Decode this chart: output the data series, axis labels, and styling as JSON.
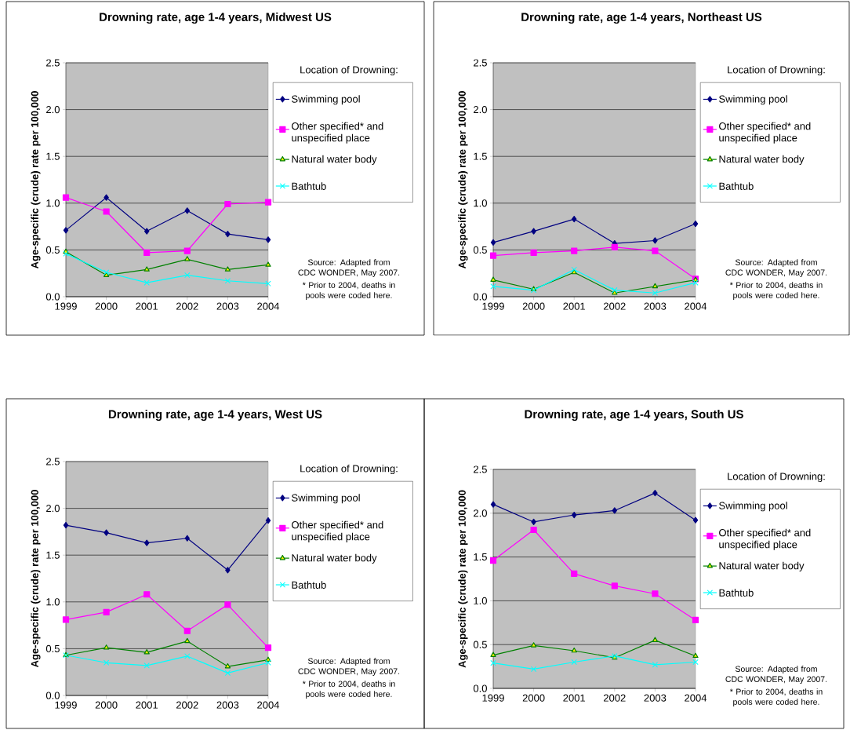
{
  "chart_data": [
    {
      "type": "line",
      "title": "Drowning rate, age 1-4 years, Midwest US",
      "ylabel": "Age-specific (crude) rate per 100,000",
      "legend_title": "Location of Drowning:",
      "categories": [
        "1999",
        "2000",
        "2001",
        "2002",
        "2003",
        "2004"
      ],
      "series": [
        {
          "name": "Swimming pool",
          "color": "#000080",
          "marker": "diamond",
          "values": [
            0.71,
            1.06,
            0.7,
            0.92,
            0.67,
            0.61
          ]
        },
        {
          "name": "Other specified* and unspecified place",
          "color": "#ff00ff",
          "marker": "square",
          "values": [
            1.06,
            0.91,
            0.47,
            0.49,
            0.99,
            1.01
          ]
        },
        {
          "name": "Natural water body",
          "color": "#008000",
          "marker": "triangle",
          "values": [
            0.48,
            0.23,
            0.29,
            0.4,
            0.29,
            0.34
          ]
        },
        {
          "name": "Bathtub",
          "color": "#00ffff",
          "marker": "cross",
          "values": [
            0.46,
            0.26,
            0.15,
            0.23,
            0.17,
            0.14
          ]
        }
      ],
      "ylim": [
        0,
        2.5
      ],
      "yticks": [
        {
          "value": 0,
          "label": "0.0"
        },
        0.5,
        {
          "value": 1,
          "label": "1.0"
        },
        1.5,
        {
          "value": 2,
          "label": "2.0"
        },
        2.5
      ],
      "grid": "y",
      "legend": "right",
      "annotations": [
        "Source: Adapted from CDC WONDER, May 2007.",
        "* Prior to 2004, deaths in pools were coded here."
      ]
    },
    {
      "type": "line",
      "title": "Drowning rate, age 1-4 years, Northeast US",
      "ylabel": "Age-specific (crude) rate per 100,000",
      "legend_title": "Location of Drowning:",
      "categories": [
        "1999",
        "2000",
        "2001",
        "2002",
        "2003",
        "2004"
      ],
      "series": [
        {
          "name": "Swimming pool",
          "color": "#000080",
          "marker": "diamond",
          "values": [
            0.58,
            0.7,
            0.83,
            0.57,
            0.6,
            0.78
          ]
        },
        {
          "name": "Other specified* and unspecified place",
          "color": "#ff00ff",
          "marker": "square",
          "values": [
            0.44,
            0.47,
            0.49,
            0.53,
            0.49,
            0.19
          ]
        },
        {
          "name": "Natural water body",
          "color": "#008000",
          "marker": "triangle",
          "values": [
            0.18,
            0.08,
            0.26,
            0.04,
            0.11,
            0.18
          ]
        },
        {
          "name": "Bathtub",
          "color": "#00ffff",
          "marker": "cross",
          "values": [
            0.11,
            0.07,
            0.29,
            0.07,
            0.04,
            0.15
          ]
        }
      ],
      "ylim": [
        0,
        2.5
      ],
      "yticks": [
        {
          "value": 0,
          "label": "0.0"
        },
        0.5,
        {
          "value": 1,
          "label": "1.0"
        },
        1.5,
        {
          "value": 2,
          "label": "2.0"
        },
        2.5
      ],
      "grid": "y",
      "legend": "right",
      "annotations": [
        "Source: Adapted from CDC WONDER, May 2007.",
        "* Prior to 2004, deaths in pools were coded here."
      ]
    },
    {
      "type": "line",
      "title": "Drowning rate, age 1-4 years, West US",
      "ylabel": "Age-specific (crude) rate per 100,000",
      "legend_title": "Location of Drowning:",
      "categories": [
        "1999",
        "2000",
        "2001",
        "2002",
        "2003",
        "2004"
      ],
      "series": [
        {
          "name": "Swimming pool",
          "color": "#000080",
          "marker": "diamond",
          "values": [
            1.82,
            1.74,
            1.63,
            1.68,
            1.34,
            1.87
          ]
        },
        {
          "name": "Other specified* and unspecified place",
          "color": "#ff00ff",
          "marker": "square",
          "values": [
            0.81,
            0.89,
            1.08,
            0.69,
            0.97,
            0.51
          ]
        },
        {
          "name": "Natural water body",
          "color": "#008000",
          "marker": "triangle",
          "values": [
            0.43,
            0.51,
            0.46,
            0.58,
            0.31,
            0.38
          ]
        },
        {
          "name": "Bathtub",
          "color": "#00ffff",
          "marker": "cross",
          "values": [
            0.43,
            0.35,
            0.32,
            0.42,
            0.24,
            0.35
          ]
        }
      ],
      "ylim": [
        0,
        2.5
      ],
      "yticks": [
        {
          "value": 0,
          "label": "0.0"
        },
        0.5,
        {
          "value": 1,
          "label": "1.0"
        },
        1.5,
        {
          "value": 2,
          "label": "2.0"
        },
        2.5
      ],
      "grid": "y",
      "legend": "right",
      "annotations": [
        "Source: Adapted from CDC WONDER, May 2007.",
        "* Prior to 2004, deaths in pools were coded here."
      ]
    },
    {
      "type": "line",
      "title": "Drowning rate, age 1-4 years, South US",
      "ylabel": "Age-specific (crude) rate per 100,000",
      "legend_title": "Location of Drowning:",
      "categories": [
        "1999",
        "2000",
        "2001",
        "2002",
        "2003",
        "2004"
      ],
      "series": [
        {
          "name": "Swimming pool",
          "color": "#000080",
          "marker": "diamond",
          "values": [
            2.1,
            1.9,
            1.98,
            2.03,
            2.23,
            1.92
          ]
        },
        {
          "name": "Other specified* and unspecified place",
          "color": "#ff00ff",
          "marker": "square",
          "values": [
            1.46,
            1.81,
            1.31,
            1.17,
            1.08,
            0.78
          ]
        },
        {
          "name": "Natural water body",
          "color": "#008000",
          "marker": "triangle",
          "values": [
            0.38,
            0.49,
            0.43,
            0.35,
            0.55,
            0.37
          ]
        },
        {
          "name": "Bathtub",
          "color": "#00ffff",
          "marker": "cross",
          "values": [
            0.29,
            0.22,
            0.3,
            0.37,
            0.27,
            0.3
          ]
        }
      ],
      "ylim": [
        0,
        2.5
      ],
      "yticks": [
        {
          "value": 0,
          "label": "0.0"
        },
        0.5,
        {
          "value": 1,
          "label": "1.0"
        },
        1.5,
        {
          "value": 2,
          "label": "2.0"
        },
        2.5
      ],
      "grid": "y",
      "legend": "right",
      "annotations": [
        "Source: Adapted from CDC WONDER, May 2007.",
        "* Prior to 2004, deaths in pools were coded here."
      ]
    }
  ]
}
